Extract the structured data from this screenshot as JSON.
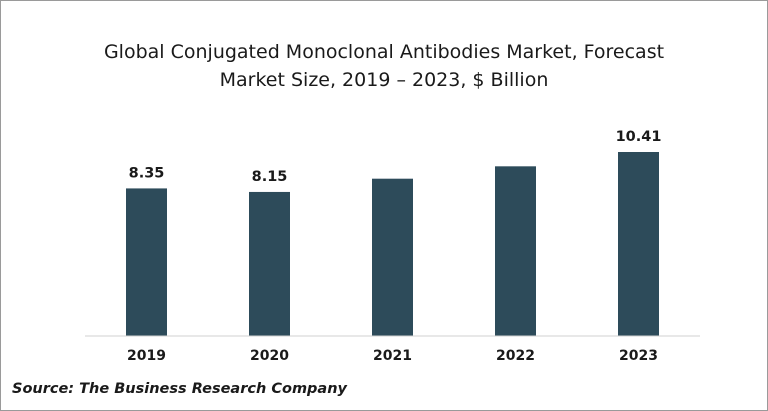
{
  "chart_data": {
    "type": "bar",
    "title_lines": [
      "Global Conjugated Monoclonal Antibodies Market, Forecast",
      "Market Size, 2019 – 2023, $ Billion"
    ],
    "categories": [
      "2019",
      "2020",
      "2021",
      "2022",
      "2023"
    ],
    "values": [
      8.35,
      8.15,
      8.9,
      9.6,
      10.41
    ],
    "value_labels": [
      "8.35",
      "8.15",
      "",
      "",
      "10.41"
    ],
    "bar_color": "#2d4b5a",
    "ylim": [
      0,
      10.41
    ],
    "grid": false,
    "legend": "none"
  },
  "source": "Source: The Business Research Company"
}
